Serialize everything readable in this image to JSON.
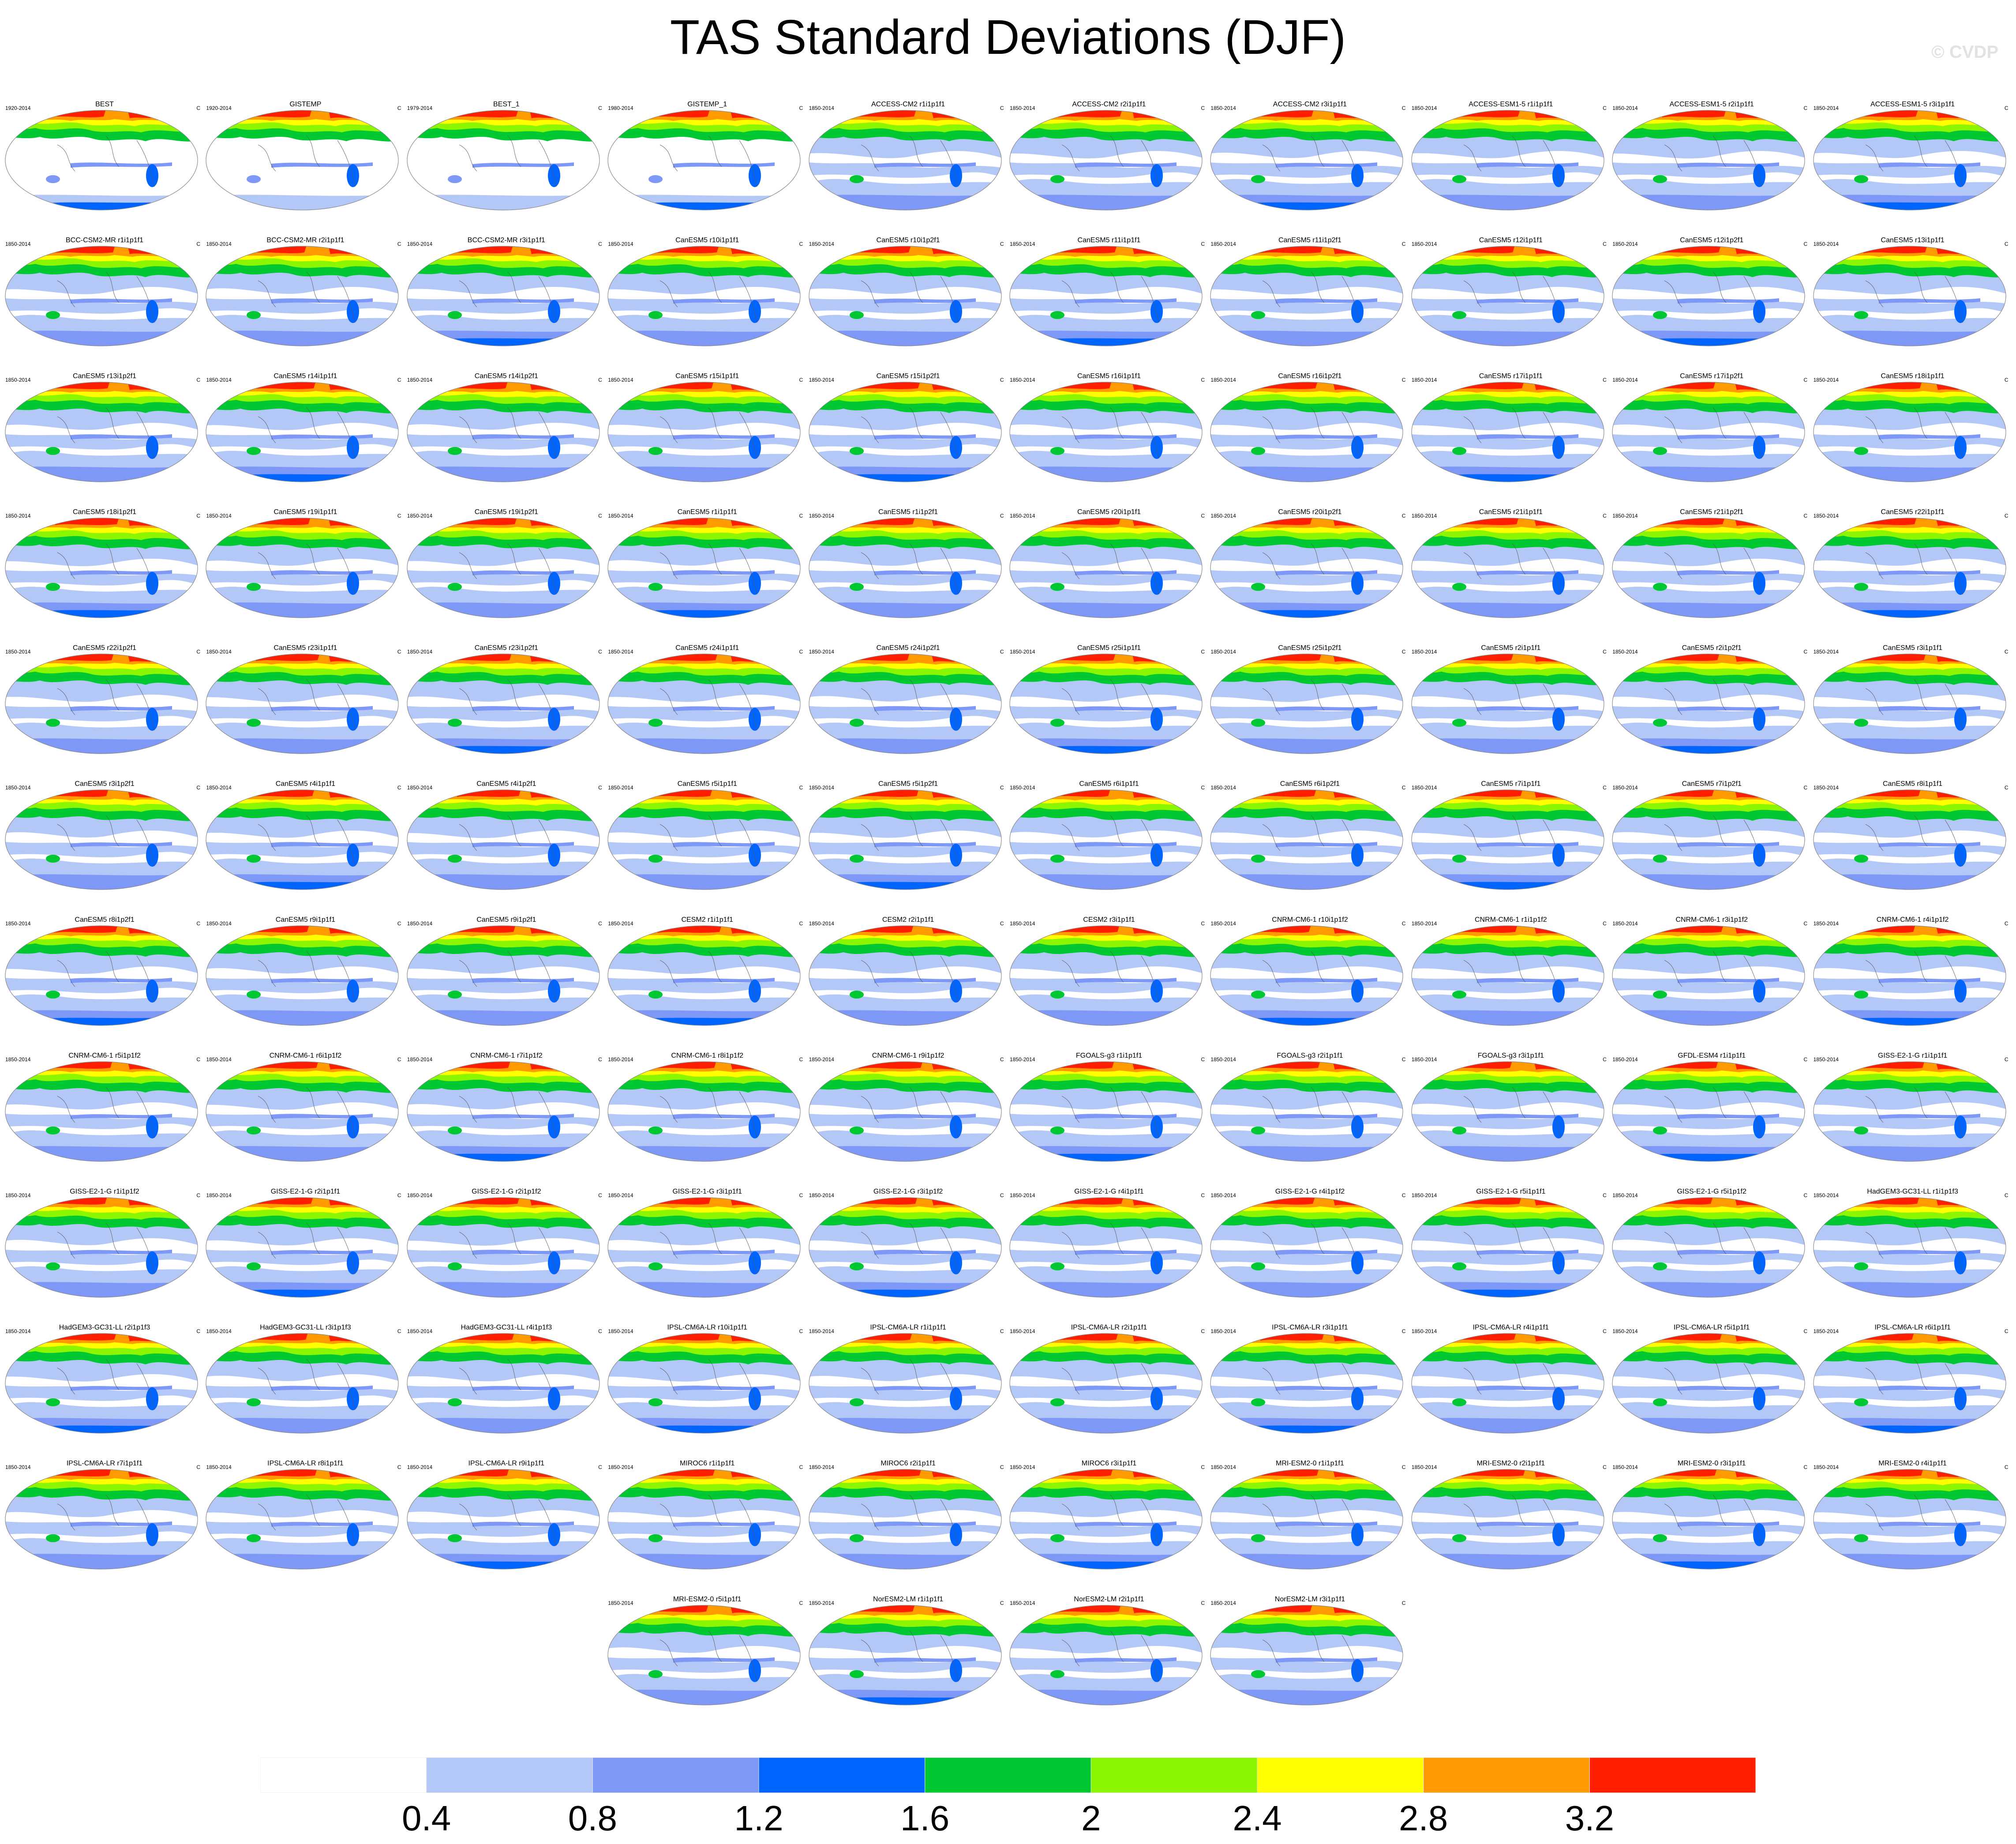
{
  "title": "TAS Standard Deviations (DJF)",
  "watermark": "© CVDP",
  "unit": "C",
  "chart_data": {
    "type": "heatmap",
    "title": "TAS Standard Deviations (DJF)",
    "grid": false,
    "colorbar": {
      "placement": "bottom",
      "ticks": [
        "0.4",
        "0.8",
        "1.2",
        "1.6",
        "2",
        "2.4",
        "2.8",
        "3.2"
      ],
      "colors": [
        "#ffffff",
        "#b4c8f8",
        "#7e98f7",
        "#0064ff",
        "#00c832",
        "#8cf500",
        "#ffff00",
        "#ff9b00",
        "#ff1e00"
      ]
    },
    "panels": [
      {
        "name": "BEST",
        "period": "1920-2014"
      },
      {
        "name": "GISTEMP",
        "period": "1920-2014"
      },
      {
        "name": "BEST_1",
        "period": "1979-2014"
      },
      {
        "name": "GISTEMP_1",
        "period": "1980-2014"
      },
      {
        "name": "ACCESS-CM2 r1i1p1f1",
        "period": "1850-2014"
      },
      {
        "name": "ACCESS-CM2 r2i1p1f1",
        "period": "1850-2014"
      },
      {
        "name": "ACCESS-CM2 r3i1p1f1",
        "period": "1850-2014"
      },
      {
        "name": "ACCESS-ESM1-5 r1i1p1f1",
        "period": "1850-2014"
      },
      {
        "name": "ACCESS-ESM1-5 r2i1p1f1",
        "period": "1850-2014"
      },
      {
        "name": "ACCESS-ESM1-5 r3i1p1f1",
        "period": "1850-2014"
      },
      {
        "name": "BCC-CSM2-MR r1i1p1f1",
        "period": "1850-2014"
      },
      {
        "name": "BCC-CSM2-MR r2i1p1f1",
        "period": "1850-2014"
      },
      {
        "name": "BCC-CSM2-MR r3i1p1f1",
        "period": "1850-2014"
      },
      {
        "name": "CanESM5 r10i1p1f1",
        "period": "1850-2014"
      },
      {
        "name": "CanESM5 r10i1p2f1",
        "period": "1850-2014"
      },
      {
        "name": "CanESM5 r11i1p1f1",
        "period": "1850-2014"
      },
      {
        "name": "CanESM5 r11i1p2f1",
        "period": "1850-2014"
      },
      {
        "name": "CanESM5 r12i1p1f1",
        "period": "1850-2014"
      },
      {
        "name": "CanESM5 r12i1p2f1",
        "period": "1850-2014"
      },
      {
        "name": "CanESM5 r13i1p1f1",
        "period": "1850-2014"
      },
      {
        "name": "CanESM5 r13i1p2f1",
        "period": "1850-2014"
      },
      {
        "name": "CanESM5 r14i1p1f1",
        "period": "1850-2014"
      },
      {
        "name": "CanESM5 r14i1p2f1",
        "period": "1850-2014"
      },
      {
        "name": "CanESM5 r15i1p1f1",
        "period": "1850-2014"
      },
      {
        "name": "CanESM5 r15i1p2f1",
        "period": "1850-2014"
      },
      {
        "name": "CanESM5 r16i1p1f1",
        "period": "1850-2014"
      },
      {
        "name": "CanESM5 r16i1p2f1",
        "period": "1850-2014"
      },
      {
        "name": "CanESM5 r17i1p1f1",
        "period": "1850-2014"
      },
      {
        "name": "CanESM5 r17i1p2f1",
        "period": "1850-2014"
      },
      {
        "name": "CanESM5 r18i1p1f1",
        "period": "1850-2014"
      },
      {
        "name": "CanESM5 r18i1p2f1",
        "period": "1850-2014"
      },
      {
        "name": "CanESM5 r19i1p1f1",
        "period": "1850-2014"
      },
      {
        "name": "CanESM5 r19i1p2f1",
        "period": "1850-2014"
      },
      {
        "name": "CanESM5 r1i1p1f1",
        "period": "1850-2014"
      },
      {
        "name": "CanESM5 r1i1p2f1",
        "period": "1850-2014"
      },
      {
        "name": "CanESM5 r20i1p1f1",
        "period": "1850-2014"
      },
      {
        "name": "CanESM5 r20i1p2f1",
        "period": "1850-2014"
      },
      {
        "name": "CanESM5 r21i1p1f1",
        "period": "1850-2014"
      },
      {
        "name": "CanESM5 r21i1p2f1",
        "period": "1850-2014"
      },
      {
        "name": "CanESM5 r22i1p1f1",
        "period": "1850-2014"
      },
      {
        "name": "CanESM5 r22i1p2f1",
        "period": "1850-2014"
      },
      {
        "name": "CanESM5 r23i1p1f1",
        "period": "1850-2014"
      },
      {
        "name": "CanESM5 r23i1p2f1",
        "period": "1850-2014"
      },
      {
        "name": "CanESM5 r24i1p1f1",
        "period": "1850-2014"
      },
      {
        "name": "CanESM5 r24i1p2f1",
        "period": "1850-2014"
      },
      {
        "name": "CanESM5 r25i1p1f1",
        "period": "1850-2014"
      },
      {
        "name": "CanESM5 r25i1p2f1",
        "period": "1850-2014"
      },
      {
        "name": "CanESM5 r2i1p1f1",
        "period": "1850-2014"
      },
      {
        "name": "CanESM5 r2i1p2f1",
        "period": "1850-2014"
      },
      {
        "name": "CanESM5 r3i1p1f1",
        "period": "1850-2014"
      },
      {
        "name": "CanESM5 r3i1p2f1",
        "period": "1850-2014"
      },
      {
        "name": "CanESM5 r4i1p1f1",
        "period": "1850-2014"
      },
      {
        "name": "CanESM5 r4i1p2f1",
        "period": "1850-2014"
      },
      {
        "name": "CanESM5 r5i1p1f1",
        "period": "1850-2014"
      },
      {
        "name": "CanESM5 r5i1p2f1",
        "period": "1850-2014"
      },
      {
        "name": "CanESM5 r6i1p1f1",
        "period": "1850-2014"
      },
      {
        "name": "CanESM5 r6i1p2f1",
        "period": "1850-2014"
      },
      {
        "name": "CanESM5 r7i1p1f1",
        "period": "1850-2014"
      },
      {
        "name": "CanESM5 r7i1p2f1",
        "period": "1850-2014"
      },
      {
        "name": "CanESM5 r8i1p1f1",
        "period": "1850-2014"
      },
      {
        "name": "CanESM5 r8i1p2f1",
        "period": "1850-2014"
      },
      {
        "name": "CanESM5 r9i1p1f1",
        "period": "1850-2014"
      },
      {
        "name": "CanESM5 r9i1p2f1",
        "period": "1850-2014"
      },
      {
        "name": "CESM2 r1i1p1f1",
        "period": "1850-2014"
      },
      {
        "name": "CESM2 r2i1p1f1",
        "period": "1850-2014"
      },
      {
        "name": "CESM2 r3i1p1f1",
        "period": "1850-2014"
      },
      {
        "name": "CNRM-CM6-1 r10i1p1f2",
        "period": "1850-2014"
      },
      {
        "name": "CNRM-CM6-1 r1i1p1f2",
        "period": "1850-2014"
      },
      {
        "name": "CNRM-CM6-1 r3i1p1f2",
        "period": "1850-2014"
      },
      {
        "name": "CNRM-CM6-1 r4i1p1f2",
        "period": "1850-2014"
      },
      {
        "name": "CNRM-CM6-1 r5i1p1f2",
        "period": "1850-2014"
      },
      {
        "name": "CNRM-CM6-1 r6i1p1f2",
        "period": "1850-2014"
      },
      {
        "name": "CNRM-CM6-1 r7i1p1f2",
        "period": "1850-2014"
      },
      {
        "name": "CNRM-CM6-1 r8i1p1f2",
        "period": "1850-2014"
      },
      {
        "name": "CNRM-CM6-1 r9i1p1f2",
        "period": "1850-2014"
      },
      {
        "name": "FGOALS-g3 r1i1p1f1",
        "period": "1850-2014"
      },
      {
        "name": "FGOALS-g3 r2i1p1f1",
        "period": "1850-2014"
      },
      {
        "name": "FGOALS-g3 r3i1p1f1",
        "period": "1850-2014"
      },
      {
        "name": "GFDL-ESM4 r1i1p1f1",
        "period": "1850-2014"
      },
      {
        "name": "GISS-E2-1-G r1i1p1f1",
        "period": "1850-2014"
      },
      {
        "name": "GISS-E2-1-G r1i1p1f2",
        "period": "1850-2014"
      },
      {
        "name": "GISS-E2-1-G r2i1p1f1",
        "period": "1850-2014"
      },
      {
        "name": "GISS-E2-1-G r2i1p1f2",
        "period": "1850-2014"
      },
      {
        "name": "GISS-E2-1-G r3i1p1f1",
        "period": "1850-2014"
      },
      {
        "name": "GISS-E2-1-G r3i1p1f2",
        "period": "1850-2014"
      },
      {
        "name": "GISS-E2-1-G r4i1p1f1",
        "period": "1850-2014"
      },
      {
        "name": "GISS-E2-1-G r4i1p1f2",
        "period": "1850-2014"
      },
      {
        "name": "GISS-E2-1-G r5i1p1f1",
        "period": "1850-2014"
      },
      {
        "name": "GISS-E2-1-G r5i1p1f2",
        "period": "1850-2014"
      },
      {
        "name": "HadGEM3-GC31-LL r1i1p1f3",
        "period": "1850-2014"
      },
      {
        "name": "HadGEM3-GC31-LL r2i1p1f3",
        "period": "1850-2014"
      },
      {
        "name": "HadGEM3-GC31-LL r3i1p1f3",
        "period": "1850-2014"
      },
      {
        "name": "HadGEM3-GC31-LL r4i1p1f3",
        "period": "1850-2014"
      },
      {
        "name": "IPSL-CM6A-LR r10i1p1f1",
        "period": "1850-2014"
      },
      {
        "name": "IPSL-CM6A-LR r1i1p1f1",
        "period": "1850-2014"
      },
      {
        "name": "IPSL-CM6A-LR r2i1p1f1",
        "period": "1850-2014"
      },
      {
        "name": "IPSL-CM6A-LR r3i1p1f1",
        "period": "1850-2014"
      },
      {
        "name": "IPSL-CM6A-LR r4i1p1f1",
        "period": "1850-2014"
      },
      {
        "name": "IPSL-CM6A-LR r5i1p1f1",
        "period": "1850-2014"
      },
      {
        "name": "IPSL-CM6A-LR r6i1p1f1",
        "period": "1850-2014"
      },
      {
        "name": "IPSL-CM6A-LR r7i1p1f1",
        "period": "1850-2014"
      },
      {
        "name": "IPSL-CM6A-LR r8i1p1f1",
        "period": "1850-2014"
      },
      {
        "name": "IPSL-CM6A-LR r9i1p1f1",
        "period": "1850-2014"
      },
      {
        "name": "MIROC6 r1i1p1f1",
        "period": "1850-2014"
      },
      {
        "name": "MIROC6 r2i1p1f1",
        "period": "1850-2014"
      },
      {
        "name": "MIROC6 r3i1p1f1",
        "period": "1850-2014"
      },
      {
        "name": "MRI-ESM2-0 r1i1p1f1",
        "period": "1850-2014"
      },
      {
        "name": "MRI-ESM2-0 r2i1p1f1",
        "period": "1850-2014"
      },
      {
        "name": "MRI-ESM2-0 r3i1p1f1",
        "period": "1850-2014"
      },
      {
        "name": "MRI-ESM2-0 r4i1p1f1",
        "period": "1850-2014"
      },
      {
        "name": "MRI-ESM2-0 r5i1p1f1",
        "period": "1850-2014"
      },
      {
        "name": "NorESM2-LM r1i1p1f1",
        "period": "1850-2014"
      },
      {
        "name": "NorESM2-LM r2i1p1f1",
        "period": "1850-2014"
      },
      {
        "name": "NorESM2-LM r3i1p1f1",
        "period": "1850-2014"
      }
    ]
  }
}
